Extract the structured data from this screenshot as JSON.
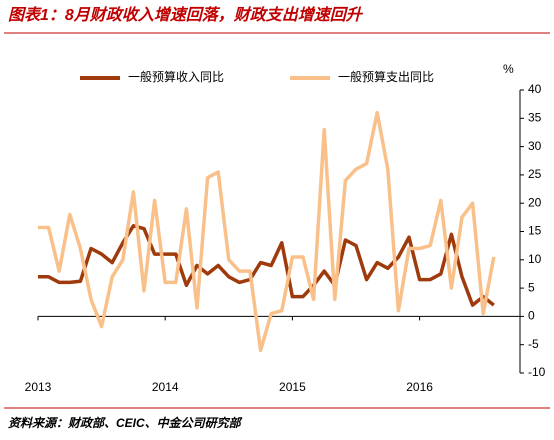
{
  "chart_data": {
    "type": "line",
    "title": "图表1：8月财政收入增速回落，财政支出增速回升",
    "source": "资料来源：财政部、CEIC、中金公司研究部",
    "y_unit": "%",
    "categories": [
      "2013",
      null,
      null,
      null,
      null,
      null,
      null,
      null,
      null,
      null,
      null,
      null,
      "2014",
      null,
      null,
      null,
      null,
      null,
      null,
      null,
      null,
      null,
      null,
      null,
      "2015",
      null,
      null,
      null,
      null,
      null,
      null,
      null,
      null,
      null,
      null,
      null,
      "2016",
      null,
      null,
      null,
      null,
      null,
      null,
      null
    ],
    "series": [
      {
        "name": "一般预算收入同比",
        "color": "#9e3a0c",
        "values": [
          7,
          7,
          6,
          6,
          6.2,
          12,
          11,
          9.5,
          13,
          16,
          15.5,
          11,
          11,
          11,
          5.5,
          9,
          7.5,
          9,
          7,
          6,
          6.5,
          9.5,
          9,
          13,
          3.5,
          3.5,
          5.5,
          8,
          5.5,
          13.5,
          12.5,
          6.5,
          9.5,
          8.5,
          10.5,
          14,
          6.5,
          6.5,
          7.5,
          14.5,
          7,
          2,
          3.5,
          2
        ]
      },
      {
        "name": "一般预算支出同比",
        "color": "#f9c08a",
        "values": [
          15.7,
          15.7,
          8,
          18,
          12,
          3,
          -1.8,
          7,
          10,
          22,
          4.5,
          20.5,
          6,
          6,
          19,
          1.5,
          24.5,
          25.5,
          10,
          8,
          8,
          -6,
          0.5,
          1,
          10.5,
          10.5,
          3,
          33,
          3,
          24,
          26,
          27,
          36,
          26,
          1,
          12,
          12,
          12.5,
          20.5,
          5,
          17.5,
          20,
          0.5,
          10.5
        ]
      }
    ],
    "ylim": [
      -10,
      40
    ],
    "yticks": [
      40,
      35,
      30,
      25,
      20,
      15,
      10,
      5,
      0,
      -5,
      -10
    ]
  }
}
